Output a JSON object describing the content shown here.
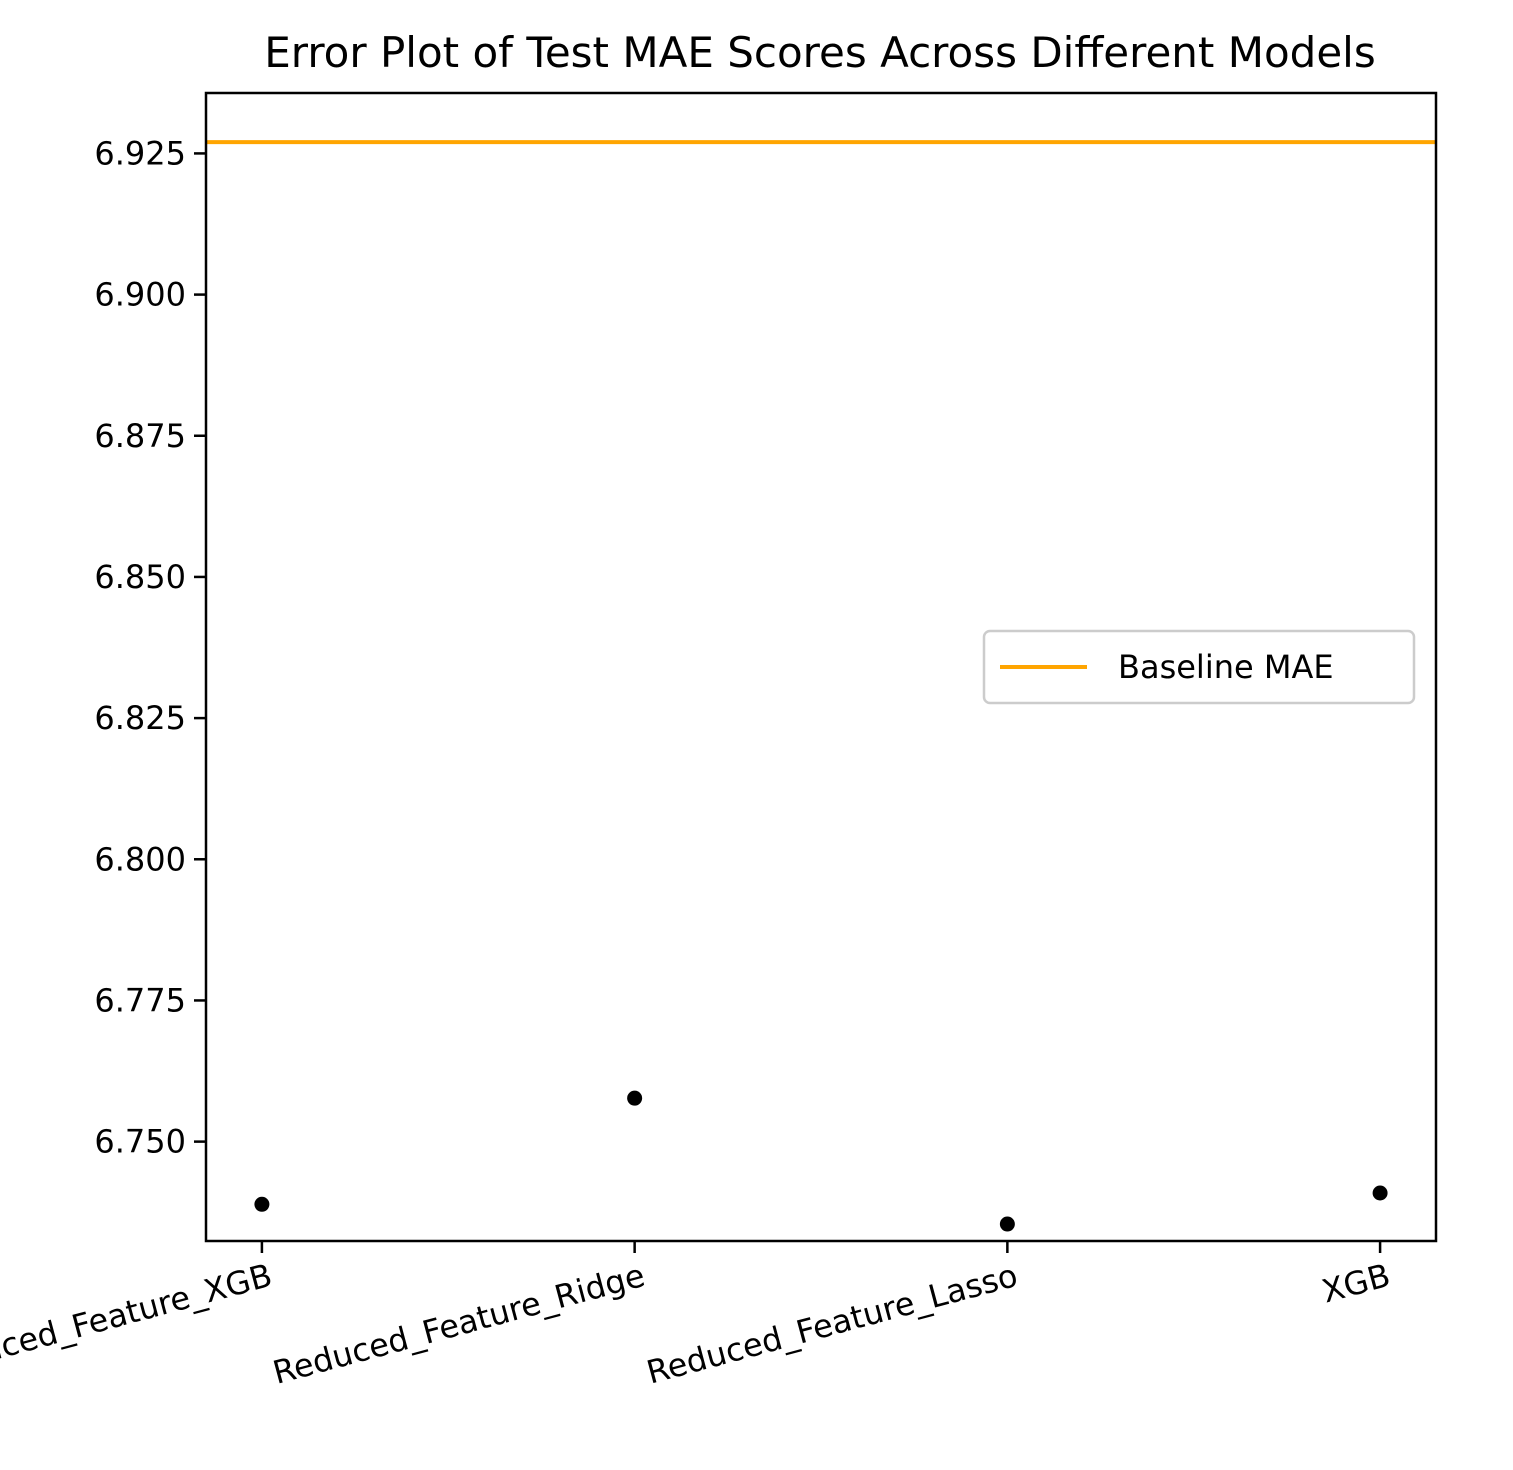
{
  "chart_data": {
    "type": "scatter",
    "title": "Error Plot of Test MAE Scores Across Different Models",
    "xlabel": "",
    "ylabel": "",
    "categories": [
      "Reduced_Feature_XGB",
      "Reduced_Feature_Ridge",
      "Reduced_Feature_Lasso",
      "XGB"
    ],
    "series": [
      {
        "values": [
          6.7389,
          6.7577,
          6.7354,
          6.7409
        ],
        "color": "#000000"
      }
    ],
    "reference_lines": [
      {
        "name": "Baseline MAE",
        "y": 6.927,
        "color": "#FFA500"
      }
    ],
    "ylim": [
      6.7324,
      6.9357
    ],
    "yticks": [
      6.75,
      6.775,
      6.8,
      6.825,
      6.85,
      6.875,
      6.9,
      6.925
    ],
    "ytick_labels": [
      "6.750",
      "6.775",
      "6.800",
      "6.825",
      "6.850",
      "6.875",
      "6.900",
      "6.925"
    ],
    "xtick_rotation_deg": -15,
    "grid": false,
    "legend": {
      "placement": "center-right",
      "entries": [
        "Baseline MAE"
      ]
    }
  }
}
